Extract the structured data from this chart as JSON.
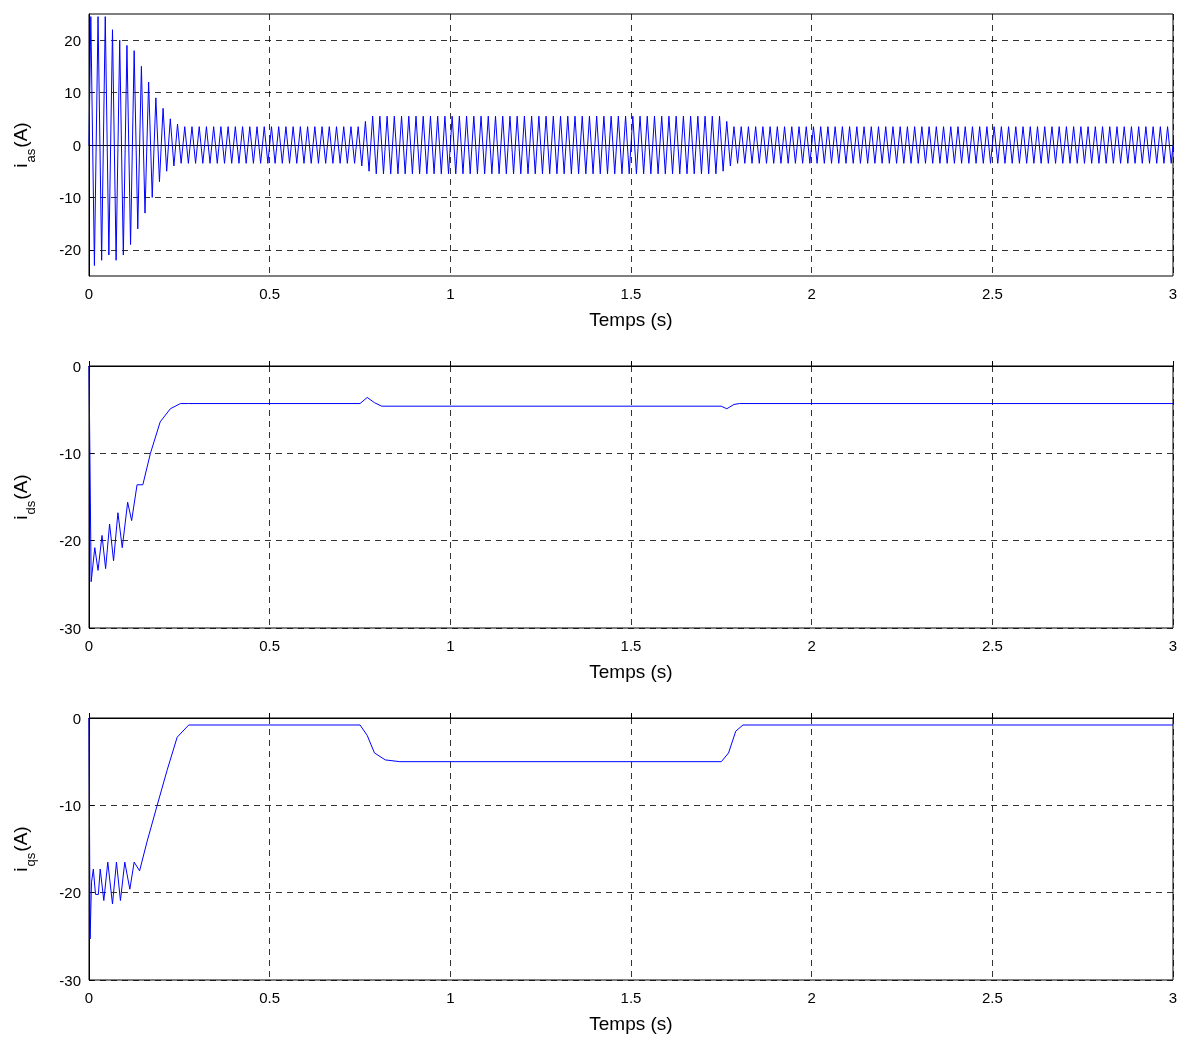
{
  "chart_data": [
    {
      "type": "line",
      "xlabel": "Temps (s)",
      "ylabel": "i$_{as}$(A)",
      "color": "#0000ff",
      "grid": true,
      "line_style": "solid",
      "marker": "none",
      "xlim": [
        0,
        3
      ],
      "xticks": [
        0,
        0.5,
        1,
        1.5,
        2,
        2.5,
        3
      ],
      "ylim": [
        -25,
        25
      ],
      "yticks": [
        -20,
        -10,
        0,
        10,
        20
      ],
      "x": [
        0,
        0.005,
        0.015,
        0.025,
        0.035,
        0.045,
        0.055,
        0.065,
        0.075,
        0.085,
        0.095,
        0.105,
        0.115,
        0.125,
        0.135,
        0.145,
        0.155,
        0.165,
        0.175,
        0.185,
        0.195,
        0.205,
        0.215,
        0.225,
        0.235,
        0.245,
        0.255,
        0.265,
        0.275,
        0.285,
        0.295,
        0.305,
        0.315,
        0.325,
        0.335,
        0.345,
        0.355,
        0.365,
        0.375,
        0.385,
        0.395,
        0.405,
        0.415,
        0.425,
        0.435,
        0.445,
        0.455,
        0.465,
        0.475,
        0.485,
        0.495,
        0.505,
        0.515,
        0.525,
        0.535,
        0.545,
        0.555,
        0.565,
        0.575,
        0.585,
        0.595,
        0.605,
        0.615,
        0.625,
        0.635,
        0.645,
        0.655,
        0.665,
        0.675,
        0.685,
        0.695,
        0.705,
        0.715,
        0.725,
        0.735,
        0.745,
        0.755,
        0.765,
        0.775,
        0.785,
        0.795,
        0.805,
        0.815,
        0.825,
        0.835,
        0.845,
        0.855,
        0.865,
        0.875,
        0.885,
        0.895,
        0.905,
        0.915,
        0.925,
        0.935,
        0.945,
        0.955,
        0.965,
        0.975,
        0.985,
        0.995,
        1.005,
        1.015,
        1.025,
        1.035,
        1.045,
        1.055,
        1.065,
        1.075,
        1.085,
        1.095,
        1.105,
        1.115,
        1.125,
        1.135,
        1.145,
        1.155,
        1.165,
        1.175,
        1.185,
        1.195,
        1.205,
        1.215,
        1.225,
        1.235,
        1.245,
        1.255,
        1.265,
        1.275,
        1.285,
        1.295,
        1.305,
        1.315,
        1.325,
        1.335,
        1.345,
        1.355,
        1.365,
        1.375,
        1.385,
        1.395,
        1.405,
        1.415,
        1.425,
        1.435,
        1.445,
        1.455,
        1.465,
        1.475,
        1.485,
        1.495,
        1.505,
        1.515,
        1.525,
        1.535,
        1.545,
        1.555,
        1.565,
        1.575,
        1.585,
        1.595,
        1.605,
        1.615,
        1.625,
        1.635,
        1.645,
        1.655,
        1.665,
        1.675,
        1.685,
        1.695,
        1.705,
        1.715,
        1.725,
        1.735,
        1.745,
        1.755,
        1.765,
        1.775,
        1.785,
        1.795,
        1.805,
        1.815,
        1.825,
        1.835,
        1.845,
        1.855,
        1.865,
        1.875,
        1.885,
        1.895,
        1.905,
        1.915,
        1.925,
        1.935,
        1.945,
        1.955,
        1.965,
        1.975,
        1.985,
        1.995,
        2.005,
        2.015,
        2.025,
        2.035,
        2.045,
        2.055,
        2.065,
        2.075,
        2.085,
        2.095,
        2.105,
        2.115,
        2.125,
        2.135,
        2.145,
        2.155,
        2.165,
        2.175,
        2.185,
        2.195,
        2.205,
        2.215,
        2.225,
        2.235,
        2.245,
        2.255,
        2.265,
        2.275,
        2.285,
        2.295,
        2.305,
        2.315,
        2.325,
        2.335,
        2.345,
        2.355,
        2.365,
        2.375,
        2.385,
        2.395,
        2.405,
        2.415,
        2.425,
        2.435,
        2.445,
        2.455,
        2.465,
        2.475,
        2.485,
        2.495,
        2.505,
        2.515,
        2.525,
        2.535,
        2.545,
        2.555,
        2.565,
        2.575,
        2.585,
        2.595,
        2.605,
        2.615,
        2.625,
        2.635,
        2.645,
        2.655,
        2.665,
        2.675,
        2.685,
        2.695,
        2.705,
        2.715,
        2.725,
        2.735,
        2.745,
        2.755,
        2.765,
        2.775,
        2.785,
        2.795,
        2.805,
        2.815,
        2.825,
        2.835,
        2.845,
        2.855,
        2.865,
        2.875,
        2.885,
        2.895,
        2.905,
        2.915,
        2.925,
        2.935,
        2.945,
        2.955,
        2.965,
        2.975,
        2.985,
        2.995,
        3
      ],
      "values": [
        0,
        24.5,
        -23,
        24.5,
        -22,
        24.5,
        -21,
        22,
        -22,
        20,
        -21,
        19,
        -19,
        18,
        -16,
        15,
        -13,
        12,
        -10,
        9,
        -7,
        7,
        -5,
        5,
        -4,
        4,
        -3.5,
        3.5,
        -3.5,
        3.5,
        -3.5,
        3.5,
        -3.5,
        3.5,
        -3.5,
        3.5,
        -3.5,
        3.5,
        -3.5,
        3.5,
        -3.5,
        3.5,
        -3.5,
        3.5,
        -3.5,
        3.5,
        -3.5,
        3.5,
        -3.5,
        3.5,
        -3.5,
        3.5,
        -3.5,
        3.5,
        -3.5,
        3.5,
        -3.5,
        3.5,
        -3.5,
        3.5,
        -3.5,
        3.5,
        -3.5,
        3.5,
        -3.5,
        3.5,
        -3.5,
        3.5,
        -3.5,
        3.5,
        -3.5,
        3.5,
        -3.5,
        3.5,
        -3.5,
        3.5,
        -4,
        4.5,
        -5,
        5.5,
        -5.5,
        5.5,
        -5.5,
        5.5,
        -5.5,
        5.5,
        -5.5,
        5.5,
        -5.5,
        5.5,
        -5.5,
        5.5,
        -5.5,
        5.5,
        -5.5,
        5.5,
        -5.5,
        5.5,
        -5.5,
        5.5,
        -5.5,
        5.5,
        -5.5,
        5.5,
        -5.5,
        5.5,
        -5.5,
        5.5,
        -5.5,
        5.5,
        -5.5,
        5.5,
        -5.5,
        5.5,
        -5.5,
        5.5,
        -5.5,
        5.5,
        -5.5,
        5.5,
        -5.5,
        5.5,
        -5.5,
        5.5,
        -5.5,
        5.5,
        -5.5,
        5.5,
        -5.5,
        5.5,
        -5.5,
        5.5,
        -5.5,
        5.5,
        -5.5,
        5.5,
        -5.5,
        5.5,
        -5.5,
        5.5,
        -5.5,
        5.5,
        -5.5,
        5.5,
        -5.5,
        5.5,
        -5.5,
        5.5,
        -5.5,
        5.5,
        -5.5,
        5.5,
        -5.5,
        5.5,
        -5.5,
        5.5,
        -5.5,
        5.5,
        -5.5,
        5.5,
        -5.5,
        5.5,
        -5.5,
        5.5,
        -5.5,
        5.5,
        -5.5,
        5.5,
        -5.5,
        5.5,
        -5.5,
        5.5,
        -5.5,
        5.5,
        -5.5,
        5.5,
        -5,
        4.5,
        -4,
        3.5,
        -3.5,
        3.5,
        -3.5,
        3.5,
        -3.5,
        3.5,
        -3.5,
        3.5,
        -3.5,
        3.5,
        -3.5,
        3.5,
        -3.5,
        3.5,
        -3.5,
        3.5,
        -3.5,
        3.5,
        -3.5,
        3.5,
        -3.5,
        3.5,
        -3.5,
        3.5,
        -3.5,
        3.5,
        -3.5,
        3.5,
        -3.5,
        3.5,
        -3.5,
        3.5,
        -3.5,
        3.5,
        -3.5,
        3.5,
        -3.5,
        3.5,
        -3.5,
        3.5,
        -3.5,
        3.5,
        -3.5,
        3.5,
        -3.5,
        3.5,
        -3.5,
        3.5,
        -3.5,
        3.5,
        -3.5,
        3.5,
        -3.5,
        3.5,
        -3.5,
        3.5,
        -3.5,
        3.5,
        -3.5,
        3.5,
        -3.5,
        3.5,
        -3.5,
        3.5,
        -3.5,
        3.5,
        -3.5,
        3.5,
        -3.5,
        3.5,
        -3.5,
        3.5,
        -3.5,
        3.5,
        -3.5,
        3.5,
        -3.5,
        3.5,
        -3.5,
        3.5,
        -3.5,
        3.5,
        -3.5,
        3.5,
        -3.5,
        3.5,
        -3.5,
        3.5,
        -3.5,
        3.5,
        -3.5,
        3.5,
        -3.5,
        3.5,
        -3.5,
        3.5,
        -3.5,
        3.5,
        -3.5,
        3.5,
        -3.5,
        3.5,
        -3.5,
        3.5,
        -3.5,
        3.5,
        -3.5,
        3.5,
        -3.5,
        3.5,
        -3.5,
        3.5,
        -3.5,
        3.5,
        -3.5,
        3.5,
        -3.5,
        3.5,
        -3.5,
        3.5,
        -3.5,
        0
      ]
    },
    {
      "type": "line",
      "xlabel": "Temps (s)",
      "ylabel": "i$_{ds}$(A)",
      "color": "#0000ff",
      "grid": true,
      "line_style": "solid",
      "marker": "none",
      "xlim": [
        0,
        3
      ],
      "xticks": [
        0,
        0.5,
        1,
        1.5,
        2,
        2.5,
        3
      ],
      "ylim": [
        -30,
        0
      ],
      "yticks": [
        -30,
        -20,
        -10,
        0
      ],
      "x": [
        0,
        0.006,
        0.016,
        0.025,
        0.036,
        0.046,
        0.057,
        0.068,
        0.08,
        0.092,
        0.107,
        0.118,
        0.133,
        0.149,
        0.17,
        0.197,
        0.225,
        0.253,
        0.276,
        0.75,
        0.77,
        0.79,
        0.81,
        1.75,
        1.765,
        1.785,
        1.8,
        3
      ],
      "values": [
        0,
        -24.7,
        -20.8,
        -23.4,
        -19.4,
        -23.2,
        -18.1,
        -22.3,
        -16.8,
        -20.8,
        -15.6,
        -17.7,
        -13.6,
        -13.6,
        -10,
        -6.4,
        -4.9,
        -4.3,
        -4.3,
        -4.3,
        -3.6,
        -4.2,
        -4.6,
        -4.6,
        -4.9,
        -4.4,
        -4.3,
        -4.3
      ]
    },
    {
      "type": "line",
      "xlabel": "Temps (s)",
      "ylabel": "i$_{qs}$(A)",
      "color": "#0000ff",
      "grid": true,
      "line_style": "solid",
      "marker": "none",
      "xlim": [
        0,
        3
      ],
      "xticks": [
        0,
        0.5,
        1,
        1.5,
        2,
        2.5,
        3
      ],
      "ylim": [
        -30,
        0
      ],
      "yticks": [
        -30,
        -20,
        -10,
        0
      ],
      "x": [
        0,
        0.003,
        0.007,
        0.012,
        0.018,
        0.026,
        0.031,
        0.041,
        0.052,
        0.065,
        0.076,
        0.087,
        0.099,
        0.113,
        0.125,
        0.14,
        0.161,
        0.188,
        0.216,
        0.244,
        0.276,
        0.75,
        0.77,
        0.79,
        0.82,
        0.86,
        1.75,
        1.77,
        1.79,
        1.81,
        3
      ],
      "values": [
        0,
        -25.3,
        -18.8,
        -17.3,
        -20.2,
        -20.2,
        -17.3,
        -20.9,
        -16.5,
        -21.3,
        -16.5,
        -20.9,
        -16.5,
        -19.6,
        -16.5,
        -17.5,
        -14.1,
        -10.1,
        -6,
        -2.2,
        -0.8,
        -0.8,
        -2,
        -4,
        -4.8,
        -5,
        -5,
        -4,
        -1.5,
        -0.8,
        -0.8
      ]
    }
  ]
}
